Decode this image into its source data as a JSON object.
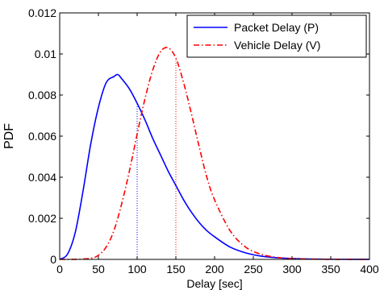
{
  "chart_data": {
    "type": "line",
    "title": "",
    "xlabel": "Delay [sec]",
    "ylabel": "PDF",
    "xlim": [
      0,
      400
    ],
    "ylim": [
      0,
      0.012
    ],
    "xticks": [
      0,
      50,
      100,
      150,
      200,
      250,
      300,
      350,
      400
    ],
    "xtick_labels": [
      "0",
      "50",
      "100",
      "150",
      "200",
      "250",
      "300",
      "350",
      "400"
    ],
    "yticks": [
      0,
      0.002,
      0.004,
      0.006,
      0.008,
      0.01,
      0.012
    ],
    "ytick_labels": [
      "0",
      "0.002",
      "0.004",
      "0.006",
      "0.008",
      "0.01",
      "0.012"
    ],
    "grid": false,
    "legend_position": "top-right",
    "series": [
      {
        "name": "Packet Delay (P)",
        "color": "#0000ff",
        "line_style": "solid",
        "x": [
          0,
          10,
          20,
          30,
          40,
          50,
          60,
          70,
          75,
          80,
          90,
          100,
          110,
          120,
          130,
          140,
          150,
          160,
          170,
          180,
          190,
          200,
          220,
          240,
          260,
          280,
          300,
          320,
          340,
          360,
          380,
          400
        ],
        "y": [
          0,
          0.00025,
          0.0013,
          0.0033,
          0.0056,
          0.0074,
          0.0086,
          0.0089,
          0.009,
          0.0088,
          0.0083,
          0.0076,
          0.0068,
          0.0059,
          0.0051,
          0.0043,
          0.0036,
          0.0029,
          0.0023,
          0.0018,
          0.0014,
          0.0011,
          0.0006,
          0.00032,
          0.00016,
          8e-05,
          4e-05,
          2e-05,
          1e-05,
          5e-06,
          2e-06,
          1e-06
        ]
      },
      {
        "name": "Vehicle Delay (V)",
        "color": "#ff0000",
        "line_style": "dashdot",
        "x": [
          0,
          20,
          40,
          50,
          60,
          70,
          80,
          90,
          100,
          110,
          120,
          130,
          140,
          150,
          160,
          170,
          180,
          190,
          200,
          220,
          240,
          260,
          280,
          300,
          320,
          340,
          360,
          380,
          400
        ],
        "y": [
          0,
          1e-06,
          5e-05,
          0.0002,
          0.0006,
          0.0014,
          0.0027,
          0.0043,
          0.0061,
          0.0078,
          0.0092,
          0.0101,
          0.0103,
          0.0098,
          0.0086,
          0.0071,
          0.0055,
          0.004,
          0.0029,
          0.0014,
          0.0006,
          0.00025,
          0.0001,
          4e-05,
          1.5e-05,
          5e-06,
          2e-06,
          1e-06,
          0
        ]
      }
    ],
    "reference_lines": [
      {
        "x": 100,
        "color": "#0000ff",
        "style": "dotted"
      },
      {
        "x": 150,
        "color": "#ff0000",
        "style": "dotted"
      }
    ]
  }
}
